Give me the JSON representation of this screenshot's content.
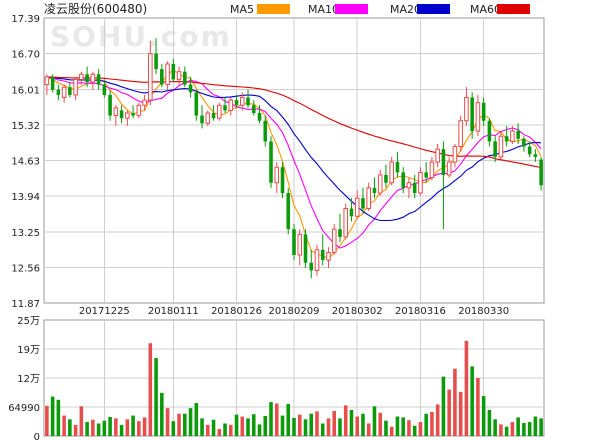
{
  "chart_data": {
    "type": "candlestick",
    "title": "凌云股份(600480)",
    "watermark": "SOHU.com",
    "legend": [
      {
        "name": "MA5",
        "color": "#ff9900"
      },
      {
        "name": "MA10",
        "color": "#ff00ff"
      },
      {
        "name": "MA20",
        "color": "#0000cc"
      },
      {
        "name": "MA60",
        "color": "#e00000"
      }
    ],
    "up_color": "#e84d4d",
    "down_color": "#0a9a0a",
    "price_ticks": [
      "17.39",
      "16.70",
      "16.01",
      "15.32",
      "14.63",
      "13.94",
      "13.25",
      "12.56",
      "11.87"
    ],
    "ylim": [
      11.87,
      17.39
    ],
    "x_tick_labels": [
      "20171225",
      "20180111",
      "20180126",
      "20180209",
      "20180302",
      "20180316",
      "20180330"
    ],
    "x_tick_index": [
      10,
      22,
      33,
      43,
      54,
      65,
      76
    ],
    "volume_ticks": [
      "25万",
      "19万",
      "12万",
      "64990",
      "0"
    ],
    "volume_max": 250000,
    "ohlc": [
      [
        16.1,
        16.3,
        15.9,
        16.25
      ],
      [
        16.25,
        16.3,
        15.95,
        16.0
      ],
      [
        16.0,
        16.1,
        15.8,
        15.9
      ],
      [
        15.85,
        16.1,
        15.75,
        16.05
      ],
      [
        16.05,
        16.15,
        15.85,
        15.9
      ],
      [
        15.9,
        16.25,
        15.8,
        16.2
      ],
      [
        16.2,
        16.35,
        16.1,
        16.3
      ],
      [
        16.3,
        16.45,
        16.05,
        16.15
      ],
      [
        16.15,
        16.35,
        16.0,
        16.3
      ],
      [
        16.3,
        16.4,
        16.0,
        16.1
      ],
      [
        16.1,
        16.2,
        15.85,
        15.9
      ],
      [
        15.9,
        16.0,
        15.4,
        15.5
      ],
      [
        15.5,
        15.7,
        15.3,
        15.65
      ],
      [
        15.6,
        15.7,
        15.35,
        15.45
      ],
      [
        15.45,
        15.6,
        15.3,
        15.55
      ],
      [
        15.55,
        15.7,
        15.45,
        15.5
      ],
      [
        15.5,
        15.75,
        15.45,
        15.7
      ],
      [
        15.7,
        15.9,
        15.6,
        15.8
      ],
      [
        15.8,
        16.95,
        15.7,
        16.7
      ],
      [
        16.7,
        17.0,
        16.3,
        16.4
      ],
      [
        16.4,
        16.5,
        16.05,
        16.1
      ],
      [
        16.1,
        16.55,
        16.0,
        16.5
      ],
      [
        16.5,
        16.6,
        16.15,
        16.2
      ],
      [
        16.2,
        16.45,
        16.1,
        16.35
      ],
      [
        16.35,
        16.45,
        16.05,
        16.1
      ],
      [
        16.1,
        16.25,
        15.85,
        15.95
      ],
      [
        15.95,
        16.0,
        15.4,
        15.5
      ],
      [
        15.5,
        15.7,
        15.25,
        15.35
      ],
      [
        15.35,
        15.6,
        15.3,
        15.55
      ],
      [
        15.55,
        15.7,
        15.4,
        15.45
      ],
      [
        15.45,
        15.75,
        15.4,
        15.7
      ],
      [
        15.7,
        15.85,
        15.55,
        15.6
      ],
      [
        15.6,
        15.85,
        15.5,
        15.8
      ],
      [
        15.8,
        15.9,
        15.65,
        15.7
      ],
      [
        15.7,
        15.95,
        15.6,
        15.85
      ],
      [
        15.85,
        16.0,
        15.65,
        15.7
      ],
      [
        15.7,
        15.8,
        15.5,
        15.55
      ],
      [
        15.55,
        15.7,
        15.35,
        15.4
      ],
      [
        15.4,
        15.5,
        14.9,
        15.0
      ],
      [
        15.0,
        15.1,
        14.1,
        14.2
      ],
      [
        14.2,
        14.6,
        14.0,
        14.5
      ],
      [
        14.5,
        14.6,
        13.9,
        14.0
      ],
      [
        14.0,
        14.1,
        13.2,
        13.3
      ],
      [
        13.3,
        13.4,
        12.7,
        12.8
      ],
      [
        12.8,
        13.3,
        12.6,
        13.2
      ],
      [
        13.2,
        13.3,
        12.55,
        12.65
      ],
      [
        12.65,
        12.9,
        12.35,
        12.5
      ],
      [
        12.5,
        13.0,
        12.4,
        12.9
      ],
      [
        12.9,
        13.2,
        12.6,
        12.7
      ],
      [
        12.7,
        12.95,
        12.55,
        12.85
      ],
      [
        12.85,
        13.4,
        12.8,
        13.3
      ],
      [
        13.3,
        13.6,
        13.05,
        13.15
      ],
      [
        13.15,
        13.8,
        13.1,
        13.7
      ],
      [
        13.7,
        13.9,
        13.45,
        13.55
      ],
      [
        13.55,
        14.05,
        13.5,
        13.9
      ],
      [
        13.9,
        14.1,
        13.6,
        13.7
      ],
      [
        13.7,
        14.2,
        13.65,
        14.1
      ],
      [
        14.1,
        14.3,
        13.9,
        14.0
      ],
      [
        14.0,
        14.45,
        13.95,
        14.35
      ],
      [
        14.35,
        14.55,
        14.1,
        14.2
      ],
      [
        14.2,
        14.7,
        14.15,
        14.6
      ],
      [
        14.6,
        14.8,
        14.3,
        14.4
      ],
      [
        14.4,
        14.5,
        14.0,
        14.1
      ],
      [
        14.1,
        14.3,
        13.9,
        14.2
      ],
      [
        14.2,
        14.35,
        13.9,
        14.0
      ],
      [
        14.0,
        14.5,
        13.95,
        14.4
      ],
      [
        14.4,
        14.6,
        14.2,
        14.3
      ],
      [
        14.3,
        14.7,
        14.25,
        14.6
      ],
      [
        14.6,
        14.95,
        14.5,
        14.85
      ],
      [
        14.85,
        15.0,
        13.3,
        14.35
      ],
      [
        14.35,
        14.7,
        14.3,
        14.6
      ],
      [
        14.6,
        14.95,
        14.5,
        14.9
      ],
      [
        14.9,
        15.5,
        14.8,
        15.4
      ],
      [
        15.4,
        16.05,
        15.3,
        15.85
      ],
      [
        15.85,
        15.95,
        15.05,
        15.2
      ],
      [
        15.2,
        15.9,
        15.1,
        15.75
      ],
      [
        15.75,
        15.85,
        15.3,
        15.4
      ],
      [
        15.4,
        15.45,
        14.9,
        15.0
      ],
      [
        15.0,
        15.1,
        14.6,
        14.7
      ],
      [
        14.7,
        15.2,
        14.65,
        15.1
      ],
      [
        15.1,
        15.3,
        14.9,
        15.0
      ],
      [
        15.0,
        15.3,
        14.95,
        15.2
      ],
      [
        15.2,
        15.35,
        14.95,
        15.05
      ],
      [
        15.05,
        15.1,
        14.8,
        14.9
      ],
      [
        14.9,
        15.0,
        14.7,
        14.75
      ],
      [
        14.75,
        14.85,
        14.6,
        14.7
      ],
      [
        14.65,
        14.7,
        14.05,
        14.15
      ]
    ],
    "volume": [
      65000,
      85000,
      78000,
      44000,
      36000,
      24000,
      64000,
      30000,
      35000,
      27000,
      33000,
      41000,
      38000,
      24000,
      36000,
      44000,
      32000,
      40000,
      200000,
      168000,
      93000,
      60000,
      32000,
      48000,
      48000,
      60000,
      71000,
      38000,
      24000,
      35000,
      15000,
      27000,
      24000,
      46000,
      42000,
      38000,
      47000,
      25000,
      43000,
      73000,
      70000,
      44000,
      69000,
      39000,
      46000,
      36000,
      48000,
      53000,
      27000,
      38000,
      54000,
      38000,
      66000,
      56000,
      42000,
      48000,
      27000,
      64000,
      50000,
      33000,
      20000,
      42000,
      40000,
      34000,
      22000,
      30000,
      48000,
      52000,
      68000,
      128000,
      100000,
      145000,
      95000,
      205000,
      150000,
      125000,
      86000,
      56000,
      36000,
      25000,
      20000,
      30000,
      40000,
      28000,
      30000,
      42000,
      38000
    ]
  }
}
